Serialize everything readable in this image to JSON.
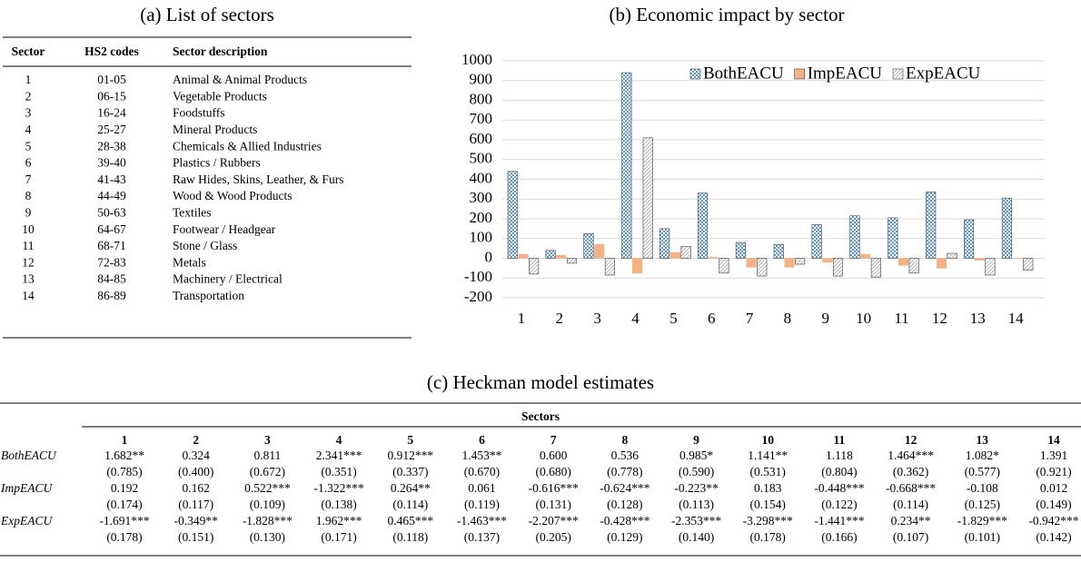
{
  "panel_a": {
    "title": "(a) List of sectors",
    "columns": [
      "Sector",
      "HS2 codes",
      "Sector description"
    ],
    "rows": [
      [
        "1",
        "01-05",
        "Animal & Animal Products"
      ],
      [
        "2",
        "06-15",
        "Vegetable Products"
      ],
      [
        "3",
        "16-24",
        "Foodstuffs"
      ],
      [
        "4",
        "25-27",
        "Mineral Products"
      ],
      [
        "5",
        "28-38",
        "Chemicals & Allied Industries"
      ],
      [
        "6",
        "39-40",
        "Plastics / Rubbers"
      ],
      [
        "7",
        "41-43",
        "Raw Hides, Skins, Leather, & Furs"
      ],
      [
        "8",
        "44-49",
        "Wood & Wood Products"
      ],
      [
        "9",
        "50-63",
        "Textiles"
      ],
      [
        "10",
        "64-67",
        "Footwear / Headgear"
      ],
      [
        "11",
        "68-71",
        "Stone / Glass"
      ],
      [
        "12",
        "72-83",
        "Metals"
      ],
      [
        "13",
        "84-85",
        "Machinery / Electrical"
      ],
      [
        "14",
        "86-89",
        "Transportation"
      ]
    ]
  },
  "chart_data": {
    "type": "bar",
    "title": "(b) Economic impact by sector",
    "categories": [
      "1",
      "2",
      "3",
      "4",
      "5",
      "6",
      "7",
      "8",
      "9",
      "10",
      "11",
      "12",
      "13",
      "14"
    ],
    "series": [
      {
        "name": "BothEACU",
        "color": "#5b9bd5",
        "pattern": "checker",
        "values": [
          440,
          40,
          125,
          940,
          150,
          330,
          80,
          70,
          170,
          215,
          205,
          335,
          195,
          305
        ]
      },
      {
        "name": "ImpEACU",
        "color": "#f4b183",
        "pattern": "solid",
        "values": [
          20,
          15,
          70,
          -75,
          30,
          5,
          -45,
          -45,
          -20,
          20,
          -35,
          -50,
          -10,
          1
        ]
      },
      {
        "name": "ExpEACU",
        "color": "#a6a6a6",
        "pattern": "hatch",
        "values": [
          -80,
          -25,
          -85,
          610,
          60,
          -75,
          -90,
          -30,
          -90,
          -95,
          -75,
          25,
          -85,
          -60
        ]
      }
    ],
    "ylim": [
      -200,
      1000
    ],
    "yticks": [
      -200,
      -100,
      0,
      100,
      200,
      300,
      400,
      500,
      600,
      700,
      800,
      900,
      1000
    ],
    "grid": true,
    "legend": "top-right"
  },
  "panel_c": {
    "title": "(c) Heckman model estimates",
    "header": "Sectors",
    "columns": [
      "1",
      "2",
      "3",
      "4",
      "5",
      "6",
      "7",
      "8",
      "9",
      "10",
      "11",
      "12",
      "13",
      "14"
    ],
    "rows": [
      {
        "label": "BothEACU",
        "estimates": [
          "1.682**",
          "0.324",
          "0.811",
          "2.341***",
          "0.912***",
          "1.453**",
          "0.600",
          "0.536",
          "0.985*",
          "1.141**",
          "1.118",
          "1.464***",
          "1.082*",
          "1.391"
        ],
        "std_errors": [
          "(0.785)",
          "(0.400)",
          "(0.672)",
          "(0.351)",
          "(0.337)",
          "(0.670)",
          "(0.680)",
          "(0.778)",
          "(0.590)",
          "(0.531)",
          "(0.804)",
          "(0.362)",
          "(0.577)",
          "(0.921)"
        ]
      },
      {
        "label": "ImpEACU",
        "estimates": [
          "0.192",
          "0.162",
          "0.522***",
          "-1.322***",
          "0.264**",
          "0.061",
          "-0.616***",
          "-0.624***",
          "-0.223**",
          "0.183",
          "-0.448***",
          "-0.668***",
          "-0.108",
          "0.012"
        ],
        "std_errors": [
          "(0.174)",
          "(0.117)",
          "(0.109)",
          "(0.138)",
          "(0.114)",
          "(0.119)",
          "(0.131)",
          "(0.128)",
          "(0.113)",
          "(0.154)",
          "(0.122)",
          "(0.114)",
          "(0.125)",
          "(0.149)"
        ]
      },
      {
        "label": "ExpEACU",
        "estimates": [
          "-1.691***",
          "-0.349**",
          "-1.828***",
          "1.962***",
          "0.465***",
          "-1.463***",
          "-2.207***",
          "-0.428***",
          "-2.353***",
          "-3.298***",
          "-1.441***",
          "0.234**",
          "-1.829***",
          "-0.942***"
        ],
        "std_errors": [
          "(0.178)",
          "(0.151)",
          "(0.130)",
          "(0.171)",
          "(0.118)",
          "(0.137)",
          "(0.205)",
          "(0.129)",
          "(0.140)",
          "(0.178)",
          "(0.166)",
          "(0.107)",
          "(0.101)",
          "(0.142)"
        ]
      }
    ]
  }
}
